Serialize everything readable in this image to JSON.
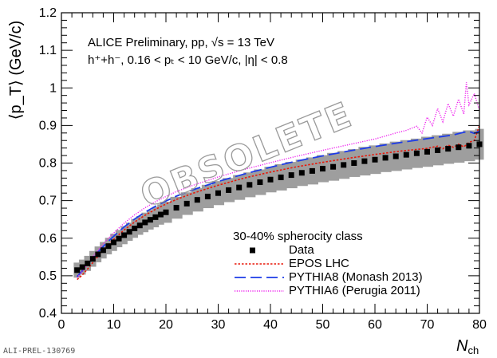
{
  "chart_data": {
    "type": "line",
    "title": "",
    "annotation_line1": "ALICE Preliminary, pp, √s = 13 TeV",
    "annotation_line2": "h⁺+h⁻, 0.16 < pₜ < 10 GeV/c, |η| < 0.8",
    "xlabel": "N_ch",
    "xlabel_main": "N",
    "xlabel_sub": "ch",
    "ylabel": "⟨p_T⟩ (GeV/c)",
    "xlim": [
      0,
      80
    ],
    "ylim": [
      0.4,
      1.2
    ],
    "xticks": [
      0,
      10,
      20,
      30,
      40,
      50,
      60,
      70,
      80
    ],
    "yticks": [
      0.4,
      0.5,
      0.6,
      0.7,
      0.8,
      0.9,
      1.0,
      1.1,
      1.2
    ],
    "xtick_labels": [
      "0",
      "10",
      "20",
      "30",
      "40",
      "50",
      "60",
      "70",
      "80"
    ],
    "ytick_labels": [
      "0.4",
      "0.5",
      "0.6",
      "0.7",
      "0.8",
      "0.9",
      "1",
      "1.1",
      "1.2"
    ],
    "legend_title": "30-40% spherocity class",
    "legend_position": "bottom-right",
    "grid": false,
    "watermark": "OBSOLETE",
    "plot_id": "ALI-PREL-130769",
    "series": [
      {
        "name": "Data",
        "style": "markers",
        "color": "#000000",
        "band_color": "#9e9e9e",
        "x": [
          3,
          4,
          5,
          6,
          7,
          8,
          9,
          10,
          11,
          12,
          13,
          14,
          15,
          16,
          17,
          18,
          19,
          20,
          22,
          24,
          26,
          28,
          30,
          32,
          34,
          36,
          38,
          40,
          42,
          44,
          46,
          48,
          50,
          52,
          54,
          56,
          58,
          60,
          62,
          64,
          66,
          68,
          70,
          72,
          74,
          76,
          78,
          80
        ],
        "values": [
          0.515,
          0.523,
          0.533,
          0.545,
          0.557,
          0.568,
          0.579,
          0.589,
          0.599,
          0.608,
          0.617,
          0.626,
          0.634,
          0.642,
          0.649,
          0.656,
          0.663,
          0.669,
          0.681,
          0.692,
          0.702,
          0.711,
          0.72,
          0.728,
          0.735,
          0.742,
          0.749,
          0.756,
          0.762,
          0.768,
          0.774,
          0.779,
          0.785,
          0.79,
          0.795,
          0.8,
          0.805,
          0.809,
          0.814,
          0.818,
          0.822,
          0.826,
          0.83,
          0.834,
          0.838,
          0.842,
          0.846,
          0.85
        ],
        "band_halfwidth": [
          0.02,
          0.02,
          0.02,
          0.021,
          0.021,
          0.022,
          0.022,
          0.023,
          0.023,
          0.024,
          0.024,
          0.025,
          0.025,
          0.026,
          0.026,
          0.027,
          0.027,
          0.028,
          0.029,
          0.03,
          0.031,
          0.031,
          0.032,
          0.032,
          0.033,
          0.033,
          0.034,
          0.034,
          0.035,
          0.035,
          0.035,
          0.036,
          0.036,
          0.037,
          0.037,
          0.037,
          0.038,
          0.038,
          0.038,
          0.039,
          0.039,
          0.039,
          0.04,
          0.04,
          0.04,
          0.041,
          0.041,
          0.041
        ]
      },
      {
        "name": "EPOS LHC",
        "style": "dotted-red",
        "color": "#e8180a",
        "x": [
          3,
          4,
          5,
          6,
          7,
          8,
          9,
          10,
          12,
          14,
          16,
          18,
          20,
          22,
          25,
          30,
          35,
          40,
          45,
          50,
          55,
          60,
          65,
          70,
          72,
          73,
          74,
          75,
          76,
          77,
          78,
          79,
          80
        ],
        "values": [
          0.49,
          0.502,
          0.518,
          0.535,
          0.552,
          0.568,
          0.583,
          0.597,
          0.622,
          0.643,
          0.661,
          0.677,
          0.691,
          0.703,
          0.719,
          0.741,
          0.76,
          0.776,
          0.79,
          0.802,
          0.813,
          0.823,
          0.832,
          0.839,
          0.845,
          0.838,
          0.848,
          0.842,
          0.85,
          0.843,
          0.855,
          0.86,
          0.9
        ]
      },
      {
        "name": "PYTHIA8 (Monash 2013)",
        "style": "long-dash-blue",
        "color": "#1d3be8",
        "x": [
          3,
          4,
          5,
          6,
          7,
          8,
          9,
          10,
          12,
          14,
          16,
          18,
          20,
          22,
          25,
          30,
          35,
          40,
          45,
          50,
          55,
          60,
          65,
          70,
          75,
          77,
          78,
          79,
          80
        ],
        "values": [
          0.498,
          0.513,
          0.53,
          0.547,
          0.563,
          0.578,
          0.592,
          0.605,
          0.63,
          0.651,
          0.669,
          0.685,
          0.699,
          0.712,
          0.728,
          0.751,
          0.771,
          0.789,
          0.805,
          0.819,
          0.832,
          0.844,
          0.855,
          0.865,
          0.875,
          0.882,
          0.884,
          0.879,
          0.885
        ]
      },
      {
        "name": "PYTHIA6 (Perugia 2011)",
        "style": "dotted-magenta",
        "color": "#ee22ee",
        "x": [
          3,
          4,
          5,
          6,
          7,
          8,
          9,
          10,
          12,
          14,
          16,
          18,
          20,
          22,
          25,
          30,
          35,
          40,
          45,
          50,
          55,
          60,
          62,
          64,
          66,
          68,
          69,
          70,
          71,
          72,
          73,
          74,
          75,
          76,
          77,
          77.5,
          78,
          79,
          80
        ],
        "values": [
          0.495,
          0.512,
          0.531,
          0.55,
          0.568,
          0.585,
          0.6,
          0.614,
          0.64,
          0.662,
          0.681,
          0.697,
          0.711,
          0.724,
          0.74,
          0.763,
          0.783,
          0.801,
          0.818,
          0.834,
          0.849,
          0.864,
          0.872,
          0.88,
          0.887,
          0.898,
          0.88,
          0.922,
          0.9,
          0.945,
          0.91,
          0.958,
          0.925,
          0.97,
          0.93,
          1.015,
          0.955,
          0.985,
          0.94
        ]
      }
    ]
  }
}
